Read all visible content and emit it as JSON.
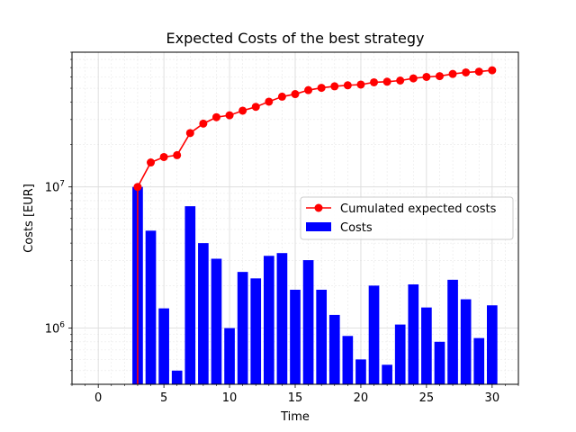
{
  "chart_data": {
    "type": "bar",
    "title": "Expected Costs of the best strategy",
    "xlabel": "Time",
    "ylabel": "Costs [EUR]",
    "yscale": "log",
    "xlim": [
      -2,
      32
    ],
    "ylim": [
      400000,
      90000000
    ],
    "x_ticks": [
      0,
      5,
      10,
      15,
      20,
      25,
      30
    ],
    "x_tick_labels": [
      "0",
      "5",
      "10",
      "15",
      "20",
      "25",
      "30"
    ],
    "y_major_ticks": [
      1000000,
      10000000
    ],
    "y_tick_labels": [
      "10^6",
      "10^7"
    ],
    "grid": true,
    "legend_position": "center-right",
    "x": [
      3,
      4,
      5,
      6,
      7,
      8,
      9,
      10,
      11,
      12,
      13,
      14,
      15,
      16,
      17,
      18,
      19,
      20,
      21,
      22,
      23,
      24,
      25,
      26,
      27,
      28,
      29,
      30
    ],
    "series": [
      {
        "name": "Costs",
        "kind": "bar",
        "color": "#0000ff",
        "values": [
          10000000,
          4900000,
          1380000,
          500000,
          7300000,
          4000000,
          3100000,
          1000000,
          2500000,
          2250000,
          3250000,
          3400000,
          1870000,
          3030000,
          1870000,
          1240000,
          880000,
          600000,
          2000000,
          550000,
          1060000,
          2040000,
          1400000,
          800000,
          2200000,
          1600000,
          850000,
          1450000
        ]
      },
      {
        "name": "Cumulated expected costs",
        "kind": "line",
        "color": "#ff0000",
        "values": [
          10000000,
          14900000,
          16280000,
          16780000,
          24080000,
          28080000,
          31180000,
          32180000,
          34680000,
          36930000,
          40180000,
          43580000,
          45450000,
          48480000,
          50350000,
          51590000,
          52470000,
          53070000,
          55070000,
          55620000,
          56680000,
          58720000,
          60120000,
          60920000,
          63120000,
          64720000,
          65570000,
          67020000
        ]
      }
    ]
  }
}
